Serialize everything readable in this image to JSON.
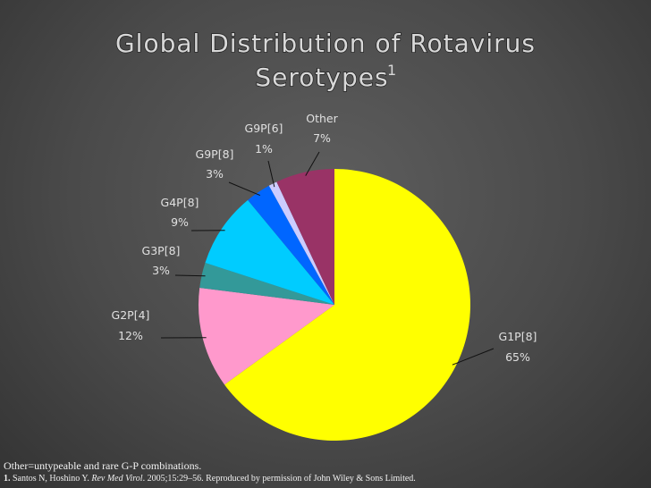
{
  "chart_data": {
    "type": "pie",
    "title_line1": "Global Distribution of Rotavirus",
    "title_line2": "Serotypes",
    "title_superscript": "1",
    "categories": [
      "G1P[8]",
      "G2P[4]",
      "G3P[8]",
      "G4P[8]",
      "G9P[8]",
      "G9P[6]",
      "Other"
    ],
    "values": [
      65,
      12,
      3,
      9,
      3,
      1,
      7
    ],
    "value_labels": [
      "65%",
      "12%",
      "3%",
      "9%",
      "3%",
      "1%",
      "7%"
    ],
    "colors": [
      "#ffff00",
      "#ff99cc",
      "#339999",
      "#00ccff",
      "#0066ff",
      "#ccccff",
      "#993366"
    ]
  },
  "footnote": {
    "note": "Other=untypeable and rare G-P combinations.",
    "ref_number": "1.",
    "ref_authors": "Santos N, Hoshino Y.",
    "ref_journal": "Rev Med Virol",
    "ref_rest": ". 2005;15:29–56. Reproduced by permission of John Wiley & Sons Limited."
  }
}
